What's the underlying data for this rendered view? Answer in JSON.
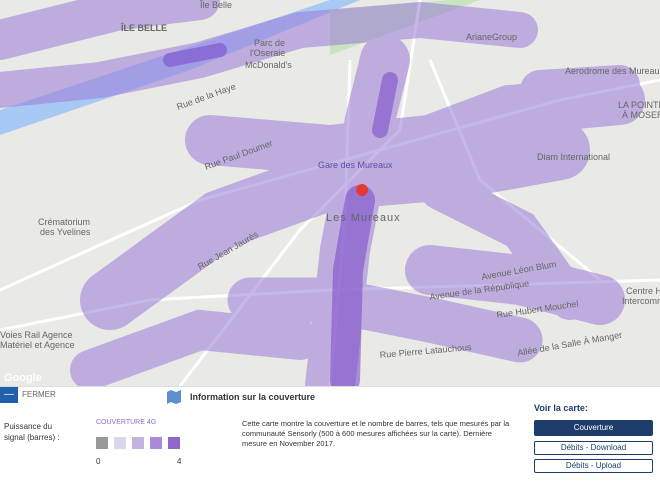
{
  "map": {
    "labels": {
      "ile_belle": "ÎLE BELLE",
      "ile_belle_rue": "Île Belle",
      "parc_1": "Parc de",
      "parc_2": "l'Oseraie",
      "mcdonalds": "McDonald's",
      "ariane": "ArianeGroup",
      "aerodrome": "Aerodrome des Mureaux",
      "pointe_1": "LA POINTE",
      "pointe_2": "À MOSER",
      "diam": "Diam International",
      "crema_1": "Crématorium",
      "crema_2": "des Yvelines",
      "mureaux": "Les Mureaux",
      "gare": "Gare des Mureaux",
      "centre_1": "Centre Ho",
      "centre_2": "Intercomm",
      "rue_paul_doumer": "Rue Paul Doumer",
      "rue_jean_jaures": "Rue Jean Jaurès",
      "av_republique": "Avenue de la République",
      "av_leon_blum": "Avenue Léon Blum",
      "allee": "Allée de la Salle À Manger",
      "rue_hubert": "Rue Hubert Mouchel",
      "rue_pierre": "Rue Pierre Latauchous",
      "rue_haye": "Rue de la Haye",
      "voies_1": "Voies Rail Agence",
      "voies_2": "Matériel et Agence",
      "google": "Google"
    }
  },
  "panel": {
    "toggle": "—",
    "close": "FERMER",
    "title": "Information sur la couverture",
    "legend_label": "Puissance du signal (barres) :",
    "legend_title": "COUVERTURE 4G",
    "legend_min": "0",
    "legend_max": "4",
    "description": "Cette carte montre la couverture et le nombre de barres, tels que mesurés par la communauté Sensorly (500 à 600 mesures affichées sur la carte). Dernière mesure en November 2017.",
    "view_title": "Voir la carte:",
    "buttons": [
      "Couverture",
      "Débits - Download",
      "Débits - Upload"
    ]
  }
}
